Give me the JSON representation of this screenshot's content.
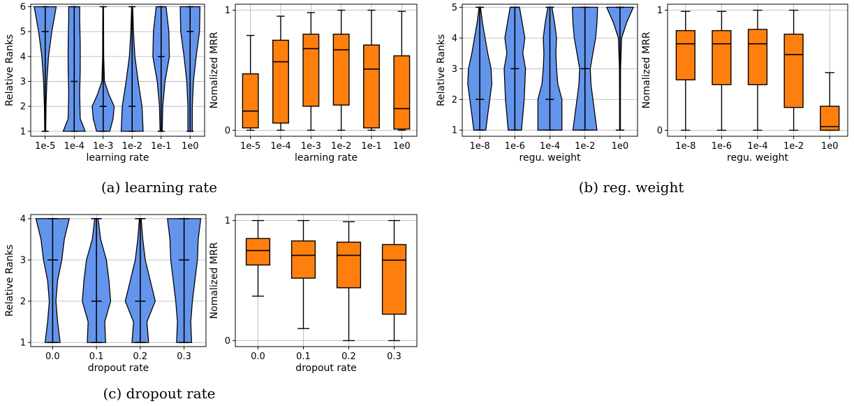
{
  "figure": {
    "captions": [
      "(a)  learning rate",
      "(b)  reg. weight",
      "(c)  dropout rate"
    ]
  },
  "colors": {
    "violin": "#6495ed",
    "box": "#ff7f0e",
    "edge": "#000000",
    "grid": "#b0b0b0"
  },
  "chart_data": [
    {
      "type": "violin",
      "xlabel": "learning rate",
      "ylabel": "Relative Ranks",
      "ylim": [
        0.8,
        6.1
      ],
      "yticks": [
        1,
        2,
        3,
        4,
        5,
        6
      ],
      "categories": [
        "1e-5",
        "1e-4",
        "1e-3",
        "1e-2",
        "1e-1",
        "1e0"
      ],
      "series": [
        {
          "min": 1,
          "max": 6,
          "median": 5,
          "profile": [
            [
              1,
              0.05
            ],
            [
              2,
              0.07
            ],
            [
              3,
              0.15
            ],
            [
              4,
              0.3
            ],
            [
              5,
              0.6
            ],
            [
              6,
              1.0
            ]
          ]
        },
        {
          "min": 1,
          "max": 6,
          "median": 3,
          "profile": [
            [
              1,
              1.0
            ],
            [
              1.5,
              0.55
            ],
            [
              2.5,
              0.5
            ],
            [
              3.5,
              0.55
            ],
            [
              4.5,
              0.55
            ],
            [
              5.5,
              0.5
            ],
            [
              6,
              0.5
            ]
          ]
        },
        {
          "min": 1,
          "max": 6,
          "median": 2,
          "profile": [
            [
              1,
              0.6
            ],
            [
              1.5,
              0.9
            ],
            [
              2,
              1.0
            ],
            [
              2.5,
              0.5
            ],
            [
              3,
              0.12
            ],
            [
              4,
              0.05
            ],
            [
              5,
              0.04
            ],
            [
              6,
              0.03
            ]
          ]
        },
        {
          "min": 1,
          "max": 6,
          "median": 2,
          "profile": [
            [
              1,
              1.0
            ],
            [
              2,
              0.9
            ],
            [
              3,
              0.55
            ],
            [
              4,
              0.25
            ],
            [
              5,
              0.12
            ],
            [
              6,
              0.05
            ]
          ]
        },
        {
          "min": 1,
          "max": 6,
          "median": 4,
          "profile": [
            [
              1,
              0.1
            ],
            [
              2,
              0.15
            ],
            [
              3,
              0.35
            ],
            [
              4,
              0.75
            ],
            [
              5,
              0.7
            ],
            [
              6,
              0.45
            ]
          ]
        },
        {
          "min": 1,
          "max": 6,
          "median": 5,
          "profile": [
            [
              1,
              0.2
            ],
            [
              2,
              0.2
            ],
            [
              3,
              0.3
            ],
            [
              4,
              0.55
            ],
            [
              5,
              0.85
            ],
            [
              6,
              0.9
            ]
          ]
        }
      ]
    },
    {
      "type": "box",
      "xlabel": "learning rate",
      "ylabel": "Nomalized MRR",
      "ylim": [
        -0.05,
        1.05
      ],
      "yticks": [
        0,
        1
      ],
      "categories": [
        "1e-5",
        "1e-4",
        "1e-3",
        "1e-2",
        "1e-1",
        "1e0"
      ],
      "boxes": [
        {
          "whislo": 0.0,
          "q1": 0.02,
          "med": 0.16,
          "q3": 0.47,
          "whishi": 0.79
        },
        {
          "whislo": 0.0,
          "q1": 0.06,
          "med": 0.57,
          "q3": 0.75,
          "whishi": 0.95
        },
        {
          "whislo": 0.0,
          "q1": 0.2,
          "med": 0.68,
          "q3": 0.8,
          "whishi": 0.98
        },
        {
          "whislo": 0.0,
          "q1": 0.21,
          "med": 0.67,
          "q3": 0.8,
          "whishi": 1.0
        },
        {
          "whislo": 0.0,
          "q1": 0.02,
          "med": 0.51,
          "q3": 0.71,
          "whishi": 1.0
        },
        {
          "whislo": 0.0,
          "q1": 0.01,
          "med": 0.18,
          "q3": 0.62,
          "whishi": 0.99
        }
      ]
    },
    {
      "type": "violin",
      "xlabel": "regu. weight",
      "ylabel": "Relative Ranks",
      "ylim": [
        0.8,
        5.1
      ],
      "yticks": [
        1,
        2,
        3,
        4,
        5
      ],
      "categories": [
        "1e-8",
        "1e-6",
        "1e-4",
        "1e-2",
        "1e0"
      ],
      "series": [
        {
          "min": 1,
          "max": 5,
          "median": 2,
          "profile": [
            [
              1,
              0.45
            ],
            [
              1.5,
              0.6
            ],
            [
              2,
              0.75
            ],
            [
              2.5,
              0.9
            ],
            [
              3,
              0.85
            ],
            [
              3.5,
              0.6
            ],
            [
              4,
              0.4
            ],
            [
              4.5,
              0.2
            ],
            [
              5,
              0.05
            ]
          ]
        },
        {
          "min": 1,
          "max": 5,
          "median": 3,
          "profile": [
            [
              1,
              0.5
            ],
            [
              2,
              0.7
            ],
            [
              3,
              0.8
            ],
            [
              3.5,
              0.6
            ],
            [
              4,
              0.75
            ],
            [
              4.5,
              0.55
            ],
            [
              5,
              0.35
            ]
          ]
        },
        {
          "min": 1,
          "max": 5,
          "median": 2,
          "profile": [
            [
              1,
              0.9
            ],
            [
              2,
              0.9
            ],
            [
              2.5,
              0.6
            ],
            [
              3,
              0.5
            ],
            [
              3.5,
              0.45
            ],
            [
              4,
              0.5
            ],
            [
              4.5,
              0.35
            ],
            [
              5,
              0.15
            ]
          ]
        },
        {
          "min": 1,
          "max": 5,
          "median": 3,
          "profile": [
            [
              1,
              0.9
            ],
            [
              1.5,
              0.75
            ],
            [
              2,
              0.6
            ],
            [
              2.5,
              0.45
            ],
            [
              3,
              0.4
            ],
            [
              3.5,
              0.6
            ],
            [
              4,
              0.8
            ],
            [
              4.5,
              0.9
            ],
            [
              5,
              0.95
            ]
          ]
        },
        {
          "min": 1,
          "max": 5,
          "median": 5,
          "profile": [
            [
              1,
              0.03
            ],
            [
              2,
              0.03
            ],
            [
              3,
              0.04
            ],
            [
              4,
              0.12
            ],
            [
              4.5,
              0.5
            ],
            [
              5,
              1.0
            ]
          ]
        }
      ]
    },
    {
      "type": "box",
      "xlabel": "regu. weight",
      "ylabel": "Nomalized MRR",
      "ylim": [
        -0.05,
        1.05
      ],
      "yticks": [
        0,
        1
      ],
      "categories": [
        "1e-8",
        "1e-6",
        "1e-4",
        "1e-2",
        "1e0"
      ],
      "boxes": [
        {
          "whislo": 0.0,
          "q1": 0.42,
          "med": 0.72,
          "q3": 0.83,
          "whishi": 0.99
        },
        {
          "whislo": 0.0,
          "q1": 0.38,
          "med": 0.72,
          "q3": 0.83,
          "whishi": 0.99
        },
        {
          "whislo": 0.0,
          "q1": 0.38,
          "med": 0.72,
          "q3": 0.84,
          "whishi": 1.0
        },
        {
          "whislo": 0.0,
          "q1": 0.19,
          "med": 0.63,
          "q3": 0.8,
          "whishi": 1.0
        },
        {
          "whislo": 0.0,
          "q1": 0.0,
          "med": 0.03,
          "q3": 0.2,
          "whishi": 0.48
        }
      ]
    },
    {
      "type": "violin",
      "xlabel": "dropout rate",
      "ylabel": "Relative Ranks",
      "ylim": [
        0.9,
        4.1
      ],
      "yticks": [
        1,
        2,
        3,
        4
      ],
      "categories": [
        "0.0",
        "0.1",
        "0.2",
        "0.3"
      ],
      "series": [
        {
          "min": 1,
          "max": 4,
          "median": 3,
          "profile": [
            [
              1,
              0.45
            ],
            [
              1.5,
              0.3
            ],
            [
              2,
              0.2
            ],
            [
              2.5,
              0.3
            ],
            [
              3,
              0.55
            ],
            [
              3.5,
              0.7
            ],
            [
              4,
              1.0
            ]
          ]
        },
        {
          "min": 1,
          "max": 4,
          "median": 2,
          "profile": [
            [
              1,
              0.55
            ],
            [
              1.5,
              0.5
            ],
            [
              2,
              0.85
            ],
            [
              2.5,
              0.75
            ],
            [
              3,
              0.6
            ],
            [
              3.5,
              0.25
            ],
            [
              4,
              0.1
            ]
          ]
        },
        {
          "min": 1,
          "max": 4,
          "median": 2,
          "profile": [
            [
              1,
              0.5
            ],
            [
              1.5,
              0.4
            ],
            [
              2,
              0.9
            ],
            [
              2.5,
              0.6
            ],
            [
              3,
              0.3
            ],
            [
              3.5,
              0.15
            ],
            [
              4,
              0.05
            ]
          ]
        },
        {
          "min": 1,
          "max": 4,
          "median": 3,
          "profile": [
            [
              1,
              0.45
            ],
            [
              1.5,
              0.4
            ],
            [
              2,
              0.5
            ],
            [
              2.5,
              0.65
            ],
            [
              3,
              0.8
            ],
            [
              3.5,
              0.85
            ],
            [
              4,
              1.0
            ]
          ]
        }
      ]
    },
    {
      "type": "box",
      "xlabel": "dropout rate",
      "ylabel": "Nomalized MRR",
      "ylim": [
        -0.05,
        1.05
      ],
      "yticks": [
        0,
        1
      ],
      "categories": [
        "0.0",
        "0.1",
        "0.2",
        "0.3"
      ],
      "boxes": [
        {
          "whislo": 0.37,
          "q1": 0.63,
          "med": 0.75,
          "q3": 0.85,
          "whishi": 1.0
        },
        {
          "whislo": 0.1,
          "q1": 0.52,
          "med": 0.71,
          "q3": 0.83,
          "whishi": 1.0
        },
        {
          "whislo": 0.0,
          "q1": 0.44,
          "med": 0.71,
          "q3": 0.82,
          "whishi": 0.99
        },
        {
          "whislo": 0.0,
          "q1": 0.22,
          "med": 0.67,
          "q3": 0.8,
          "whishi": 1.0
        }
      ]
    }
  ]
}
